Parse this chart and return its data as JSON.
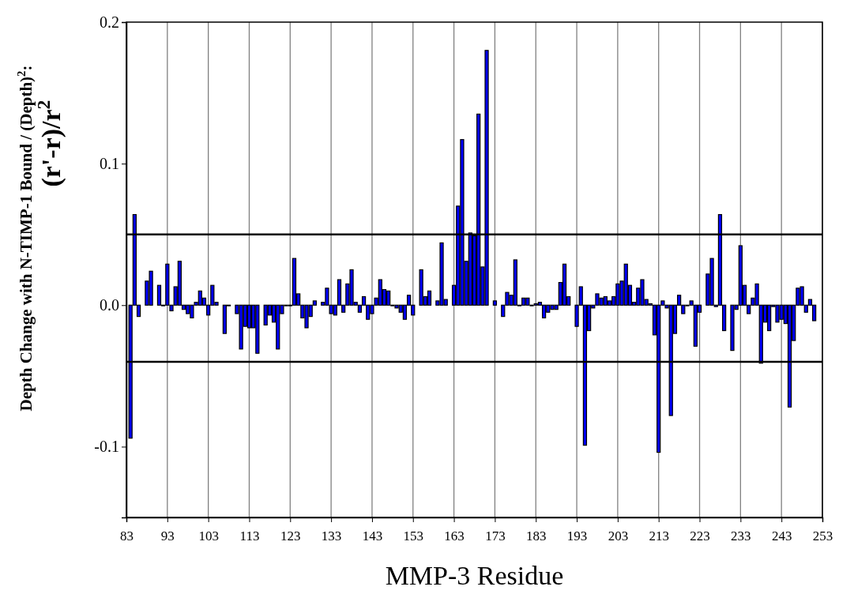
{
  "chart_data": {
    "type": "bar",
    "xlabel": "MMP-3 Residue",
    "ylabel": "Depth Change with N-TIMP-1 Bound / (Depth)$^{2}$:\n(r'-r)/r$^{2}$",
    "x": [
      84,
      85,
      86,
      87,
      88,
      89,
      90,
      91,
      92,
      93,
      94,
      95,
      96,
      97,
      98,
      99,
      100,
      101,
      102,
      103,
      104,
      105,
      106,
      107,
      108,
      109,
      110,
      111,
      112,
      113,
      114,
      115,
      116,
      117,
      118,
      119,
      120,
      121,
      122,
      123,
      124,
      125,
      126,
      127,
      128,
      129,
      130,
      131,
      132,
      133,
      134,
      135,
      136,
      137,
      138,
      139,
      140,
      141,
      142,
      143,
      144,
      145,
      146,
      147,
      148,
      149,
      150,
      151,
      152,
      153,
      154,
      155,
      156,
      157,
      158,
      159,
      160,
      161,
      162,
      163,
      164,
      165,
      166,
      167,
      168,
      169,
      170,
      171,
      172,
      173,
      174,
      175,
      176,
      177,
      178,
      179,
      180,
      181,
      182,
      183,
      184,
      185,
      186,
      187,
      188,
      189,
      190,
      191,
      192,
      193,
      194,
      195,
      196,
      197,
      198,
      199,
      200,
      201,
      202,
      203,
      204,
      205,
      206,
      207,
      208,
      209,
      210,
      211,
      212,
      213,
      214,
      215,
      216,
      217,
      218,
      219,
      220,
      221,
      222,
      223,
      224,
      225,
      226,
      227,
      228,
      229,
      230,
      231,
      232,
      233,
      234,
      235,
      236,
      237,
      238,
      239,
      240,
      241,
      242,
      243,
      244,
      245,
      246,
      247,
      248,
      249,
      250,
      251
    ],
    "values": [
      -0.094,
      0.064,
      -0.008,
      null,
      0.017,
      0.024,
      null,
      0.014,
      0,
      0.029,
      -0.004,
      0.013,
      0.031,
      -0.003,
      -0.006,
      -0.009,
      0.002,
      0.01,
      0.005,
      -0.007,
      0.014,
      0.002,
      null,
      -0.02,
      0,
      null,
      -0.006,
      -0.031,
      -0.015,
      -0.016,
      -0.016,
      -0.034,
      null,
      -0.014,
      -0.007,
      -0.012,
      -0.031,
      -0.006,
      0,
      0,
      0.033,
      0.008,
      -0.009,
      -0.016,
      -0.008,
      0.003,
      null,
      0.002,
      0.012,
      -0.006,
      -0.007,
      0.018,
      -0.005,
      0.015,
      0.025,
      0.002,
      -0.005,
      0.006,
      -0.01,
      -0.006,
      0.005,
      0.018,
      0.011,
      0.01,
      0,
      -0.002,
      -0.005,
      -0.01,
      0.007,
      -0.007,
      null,
      0.025,
      0.006,
      0.01,
      null,
      0.003,
      0.044,
      0.004,
      null,
      0.014,
      0.07,
      0.117,
      0.031,
      0.051,
      0.049,
      0.135,
      0.027,
      0.18,
      null,
      0.003,
      null,
      -0.008,
      0.009,
      0.007,
      0.032,
      0,
      0.005,
      0.005,
      0,
      0.001,
      0.002,
      -0.009,
      -0.005,
      -0.003,
      -0.003,
      0.016,
      0.029,
      0.006,
      null,
      -0.015,
      0.013,
      -0.099,
      -0.018,
      -0.002,
      0.008,
      0.005,
      0.006,
      0.003,
      0.006,
      0.015,
      0.017,
      0.029,
      0.014,
      0.002,
      0.012,
      0.018,
      0.004,
      0.001,
      -0.021,
      -0.104,
      0.003,
      -0.002,
      -0.078,
      -0.02,
      0.007,
      -0.006,
      0,
      0.003,
      -0.029,
      -0.005,
      null,
      0.022,
      0.033,
      -0.001,
      0.064,
      -0.018,
      null,
      -0.032,
      -0.003,
      0.042,
      0.014,
      -0.006,
      0.005,
      0.015,
      -0.041,
      -0.012,
      -0.018,
      -0.001,
      -0.012,
      -0.01,
      -0.013,
      -0.072,
      -0.025,
      0.012,
      0.013,
      -0.005,
      0.004,
      -0.011
    ],
    "color": "#0000ff",
    "xlim": [
      83,
      253
    ],
    "xticks": [
      83,
      93,
      103,
      113,
      123,
      133,
      143,
      153,
      163,
      173,
      183,
      193,
      203,
      213,
      223,
      233,
      243,
      253
    ],
    "ylim": [
      -0.15,
      0.2
    ],
    "yticks": [
      {
        "value": -0.15,
        "label": null
      },
      {
        "value": -0.1,
        "label": "-0.1"
      },
      {
        "value": 0,
        "label": "0.0"
      },
      {
        "value": 0.1,
        "label": "0.1"
      },
      {
        "value": 0.2,
        "label": "0.2"
      }
    ],
    "grid": "x",
    "ref_lines": [
      {
        "axis": "y",
        "value": 0.05
      },
      {
        "axis": "y",
        "value": -0.04
      }
    ]
  }
}
